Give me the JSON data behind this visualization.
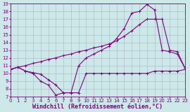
{
  "bg_color": "#cce8e8",
  "line_color": "#800080",
  "grid_color": "#b0b0cc",
  "xlabel": "Windchill (Refroidissement éolien,°C)",
  "xlabel_color": "#800080",
  "ylim": [
    7,
    19
  ],
  "xlim": [
    0,
    23
  ],
  "yticks": [
    7,
    8,
    9,
    10,
    11,
    12,
    13,
    14,
    15,
    16,
    17,
    18,
    19
  ],
  "xticks": [
    0,
    1,
    2,
    3,
    4,
    5,
    6,
    7,
    8,
    9,
    10,
    11,
    12,
    13,
    14,
    15,
    16,
    17,
    18,
    19,
    20,
    21,
    22,
    23
  ],
  "line1_x": [
    0,
    1,
    2,
    3,
    4,
    5,
    6,
    7,
    8,
    9,
    10,
    11,
    12,
    13,
    14,
    15,
    16,
    17,
    18,
    19,
    20,
    21,
    22,
    23
  ],
  "line1_y": [
    10.5,
    10.8,
    10.3,
    10.1,
    9.9,
    9.2,
    8.5,
    7.5,
    7.5,
    7.5,
    10.0,
    10.0,
    10.0,
    10.0,
    10.0,
    10.0,
    10.0,
    10.0,
    10.0,
    10.3,
    10.3,
    10.3,
    10.3,
    10.5
  ],
  "line2_x": [
    0,
    1,
    2,
    3,
    4,
    5,
    6,
    7,
    8,
    9,
    10,
    11,
    12,
    13,
    14,
    15,
    16,
    17,
    18,
    19,
    20,
    21,
    22,
    23
  ],
  "line2_y": [
    10.5,
    10.8,
    11.0,
    11.3,
    11.5,
    11.8,
    12.0,
    12.3,
    12.5,
    12.8,
    13.0,
    13.3,
    13.5,
    13.8,
    14.2,
    14.8,
    15.5,
    16.3,
    17.0,
    17.0,
    17.0,
    13.0,
    12.8,
    10.7
  ],
  "line3_x": [
    0,
    1,
    2,
    3,
    4,
    5,
    6,
    7,
    8,
    9,
    10,
    11,
    12,
    13,
    14,
    15,
    16,
    17,
    18,
    19,
    20,
    21,
    22,
    23
  ],
  "line3_y": [
    10.5,
    10.8,
    10.3,
    10.0,
    9.0,
    8.5,
    7.2,
    7.5,
    7.5,
    11.0,
    12.0,
    12.5,
    13.0,
    13.5,
    14.5,
    15.8,
    17.8,
    18.0,
    18.9,
    18.2,
    13.0,
    12.8,
    12.5,
    10.7
  ],
  "marker": "+",
  "markersize": 3,
  "linewidth": 0.8,
  "tick_fontsize": 5,
  "xlabel_fontsize": 6
}
